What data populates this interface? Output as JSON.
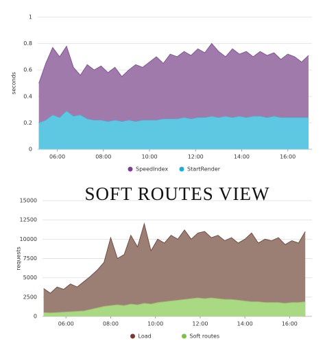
{
  "chart_data": [
    {
      "type": "area",
      "ylabel": "seconds",
      "x": [
        5.2,
        5.5,
        5.8,
        6.1,
        6.4,
        6.7,
        7.0,
        7.3,
        7.6,
        7.9,
        8.2,
        8.5,
        8.8,
        9.1,
        9.4,
        9.7,
        10.0,
        10.3,
        10.6,
        10.9,
        11.2,
        11.5,
        11.8,
        12.1,
        12.4,
        12.7,
        13.0,
        13.3,
        13.6,
        13.9,
        14.2,
        14.5,
        14.8,
        15.1,
        15.4,
        15.7,
        16.0,
        16.3,
        16.6,
        16.9
      ],
      "series": [
        {
          "name": "SpeedIndex",
          "color": "#a07aaa",
          "line_color": "#8a4fa0",
          "legend_color": "#7d3c98",
          "values": [
            0.5,
            0.65,
            0.77,
            0.7,
            0.78,
            0.62,
            0.56,
            0.64,
            0.6,
            0.63,
            0.58,
            0.62,
            0.55,
            0.6,
            0.64,
            0.62,
            0.66,
            0.7,
            0.65,
            0.72,
            0.7,
            0.74,
            0.71,
            0.76,
            0.73,
            0.8,
            0.74,
            0.7,
            0.76,
            0.72,
            0.74,
            0.7,
            0.74,
            0.71,
            0.73,
            0.68,
            0.72,
            0.7,
            0.66,
            0.71
          ]
        },
        {
          "name": "StartRender",
          "color": "#5ec8e2",
          "line_color": "#3bb6d6",
          "legend_color": "#1cb0d0",
          "values": [
            0.2,
            0.22,
            0.26,
            0.24,
            0.29,
            0.25,
            0.26,
            0.23,
            0.22,
            0.22,
            0.21,
            0.22,
            0.21,
            0.22,
            0.21,
            0.22,
            0.22,
            0.22,
            0.23,
            0.23,
            0.23,
            0.24,
            0.23,
            0.24,
            0.24,
            0.25,
            0.24,
            0.25,
            0.24,
            0.25,
            0.24,
            0.25,
            0.25,
            0.24,
            0.25,
            0.24,
            0.24,
            0.24,
            0.24,
            0.24
          ]
        }
      ],
      "xlim": [
        5.15,
        17.05
      ],
      "ylim": [
        0,
        1
      ],
      "xticks": [
        {
          "value": 6,
          "label": "06:00"
        },
        {
          "value": 8,
          "label": "08:00"
        },
        {
          "value": 10,
          "label": "10:00"
        },
        {
          "value": 12,
          "label": "12:00"
        },
        {
          "value": 14,
          "label": "14:00"
        },
        {
          "value": 16,
          "label": "16:00"
        }
      ],
      "yticks": [
        0,
        0.2,
        0.4,
        0.6,
        0.8,
        1
      ],
      "grid": true,
      "legend": "bottom"
    },
    {
      "type": "area",
      "title": "SOFT ROUTES VIEW",
      "ylabel": "requests",
      "x": [
        5.0,
        5.3,
        5.6,
        5.9,
        6.2,
        6.5,
        6.8,
        7.1,
        7.4,
        7.7,
        8.0,
        8.3,
        8.6,
        8.9,
        9.2,
        9.5,
        9.8,
        10.1,
        10.4,
        10.7,
        11.0,
        11.3,
        11.6,
        11.9,
        12.2,
        12.5,
        12.8,
        13.1,
        13.4,
        13.7,
        14.0,
        14.3,
        14.6,
        14.9,
        15.2,
        15.5,
        15.8,
        16.1,
        16.4,
        16.7
      ],
      "series": [
        {
          "name": "Load",
          "color": "#9c7f74",
          "line_color": "#7a4a3c",
          "legend_color": "#7a3b2e",
          "values": [
            3600,
            3000,
            3800,
            3500,
            4200,
            3800,
            4500,
            5200,
            6000,
            7000,
            10200,
            7500,
            8000,
            10500,
            9000,
            12000,
            8500,
            10000,
            9500,
            10500,
            10000,
            11200,
            10000,
            10800,
            11000,
            10200,
            10500,
            9800,
            10200,
            9500,
            10000,
            10800,
            9500,
            10000,
            9800,
            10200,
            9300,
            9800,
            9500,
            11000
          ]
        },
        {
          "name": "Soft routes",
          "color": "#a9d982",
          "line_color": "#8cc45c",
          "legend_color": "#7cc242",
          "values": [
            500,
            450,
            500,
            550,
            600,
            650,
            700,
            900,
            1100,
            1300,
            1400,
            1500,
            1400,
            1600,
            1500,
            1700,
            1600,
            1800,
            1900,
            2000,
            2100,
            2200,
            2300,
            2400,
            2300,
            2400,
            2300,
            2200,
            2200,
            2100,
            2000,
            1900,
            1900,
            1800,
            1800,
            1800,
            1700,
            1800,
            1800,
            1900
          ]
        }
      ],
      "xlim": [
        4.95,
        17.0
      ],
      "ylim": [
        0,
        15000
      ],
      "xticks": [
        {
          "value": 6,
          "label": "06:00"
        },
        {
          "value": 8,
          "label": "08:00"
        },
        {
          "value": 10,
          "label": "10:00"
        },
        {
          "value": 12,
          "label": "12:00"
        },
        {
          "value": 14,
          "label": "14:00"
        },
        {
          "value": 16,
          "label": "16:00"
        }
      ],
      "yticks": [
        0,
        2500,
        5000,
        7500,
        10000,
        12500,
        15000
      ],
      "grid": true,
      "legend": "bottom"
    }
  ]
}
